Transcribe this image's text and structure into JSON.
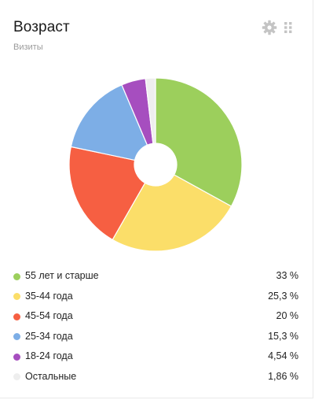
{
  "widget": {
    "title": "Возраст",
    "subtitle": "Визиты"
  },
  "icons": {
    "settings": "gear-icon",
    "drag": "drag-handle-icon"
  },
  "colors": {
    "icon_gray": "#c4c4c4",
    "text": "#222222",
    "muted": "#9a9a9a"
  },
  "chart_data": {
    "type": "pie",
    "donut": true,
    "legend_position": "bottom",
    "categories": [
      "55 лет и старше",
      "35-44 года",
      "45-54 года",
      "25-34 года",
      "18-24 года",
      "Остальные"
    ],
    "values": [
      33,
      25.3,
      20,
      15.3,
      4.54,
      1.86
    ],
    "value_labels": [
      "33 %",
      "25,3 %",
      "20 %",
      "15,3 %",
      "4,54 %",
      "1,86 %"
    ],
    "colors": [
      "#9ccf5c",
      "#fbde69",
      "#f65f42",
      "#7daee6",
      "#a64ebf",
      "#eeeeee"
    ]
  }
}
